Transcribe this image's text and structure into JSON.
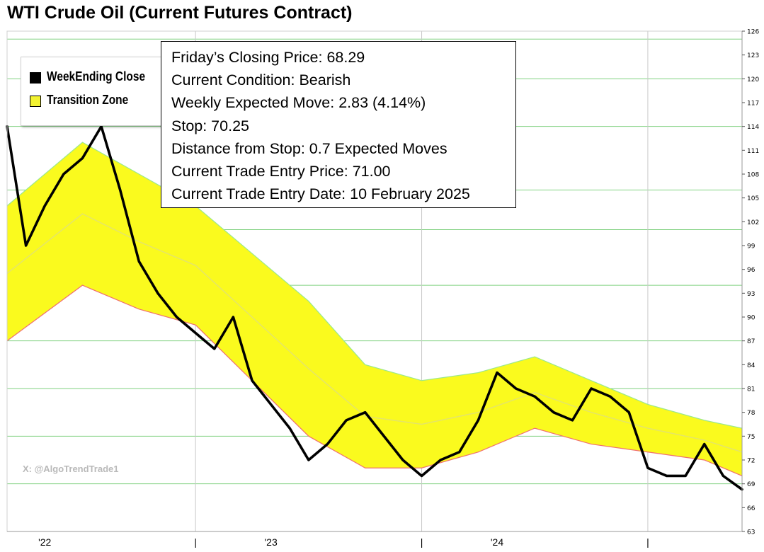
{
  "title": "WTI Crude Oil (Current Futures Contract)",
  "info_box": {
    "lines": [
      "Friday’s Closing Price: 68.29",
      "Current Condition: Bearish",
      "Weekly Expected Move: 2.83 (4.14%)",
      "Stop: 70.25",
      "Distance from Stop: 0.7 Expected Moves",
      "Current Trade Entry Price: 71.00",
      "Current Trade Entry Date: 10 February 2025"
    ]
  },
  "legend": {
    "items": [
      {
        "label": "WeekEnding Close",
        "color": "#000000"
      },
      {
        "label": "Transition Zone",
        "color": "#f2f230"
      }
    ]
  },
  "watermark": "X: @AlgoTrendTrade1",
  "colors": {
    "zone_fill": "#fafa1e",
    "zone_upper_edge": "#9be88c",
    "zone_lower_edge": "#f07070",
    "zone_mid": "#e4e46a",
    "gridline": "#7fd17f",
    "price_line": "#000000"
  },
  "chart_data": {
    "type": "line",
    "title": "WTI Crude Oil (Current Futures Contract)",
    "x_range": [
      "2021-11",
      "2025-02"
    ],
    "ylim": [
      63,
      126
    ],
    "y_ticks": [
      63,
      66,
      69,
      72,
      75,
      78,
      81,
      84,
      87,
      90,
      93,
      96,
      99,
      102,
      105,
      108,
      111,
      114,
      117,
      120,
      123,
      126
    ],
    "x_ticks": [
      {
        "label": "'22",
        "x": "2022-01"
      },
      {
        "label": "|",
        "x": "2022-09"
      },
      {
        "label": "'23",
        "x": "2023-01"
      },
      {
        "label": "|",
        "x": "2023-09"
      },
      {
        "label": "'24",
        "x": "2024-01"
      },
      {
        "label": "|",
        "x": "2024-09"
      }
    ],
    "horizontal_gridlines": [
      69,
      75,
      81,
      87,
      94,
      101,
      106,
      114,
      120,
      125
    ],
    "vertical_gridlines": [
      "2022-09",
      "2023-09",
      "2024-09"
    ],
    "series": [
      {
        "name": "WeekEnding Close",
        "x": [
          "2021-11",
          "2021-12",
          "2022-01",
          "2022-02",
          "2022-03",
          "2022-04",
          "2022-05",
          "2022-06",
          "2022-07",
          "2022-08",
          "2022-09",
          "2022-10",
          "2022-11",
          "2022-12",
          "2023-01",
          "2023-02",
          "2023-03",
          "2023-04",
          "2023-05",
          "2023-06",
          "2023-07",
          "2023-08",
          "2023-09",
          "2023-10",
          "2023-11",
          "2023-12",
          "2024-01",
          "2024-02",
          "2024-03",
          "2024-04",
          "2024-05",
          "2024-06",
          "2024-07",
          "2024-08",
          "2024-09",
          "2024-10",
          "2024-11",
          "2024-12",
          "2025-01",
          "2025-02"
        ],
        "values": [
          114,
          99,
          104,
          108,
          110,
          114,
          106,
          97,
          93,
          90,
          88,
          86,
          90,
          82,
          79,
          76,
          72,
          74,
          77,
          78,
          75,
          72,
          70,
          72,
          73,
          77,
          83,
          81,
          80,
          78,
          77,
          81,
          80,
          78,
          71,
          70,
          70,
          74,
          70,
          68.29
        ]
      },
      {
        "name": "Transition Zone (upper)",
        "x": [
          "2021-11",
          "2022-03",
          "2022-06",
          "2022-09",
          "2022-12",
          "2023-03",
          "2023-06",
          "2023-09",
          "2023-12",
          "2024-03",
          "2024-06",
          "2024-09",
          "2024-12",
          "2025-02"
        ],
        "values": [
          104,
          112,
          108,
          104,
          98,
          92,
          84,
          82,
          83,
          85,
          82,
          79,
          77,
          76
        ]
      },
      {
        "name": "Transition Zone (lower)",
        "x": [
          "2021-11",
          "2022-03",
          "2022-06",
          "2022-09",
          "2022-12",
          "2023-03",
          "2023-06",
          "2023-09",
          "2023-12",
          "2024-03",
          "2024-06",
          "2024-09",
          "2024-12",
          "2025-02"
        ],
        "values": [
          87,
          94,
          91,
          89,
          82,
          75,
          71,
          71,
          73,
          76,
          74,
          73,
          72,
          70
        ]
      }
    ],
    "grid": true,
    "legend_position": "top-left"
  }
}
